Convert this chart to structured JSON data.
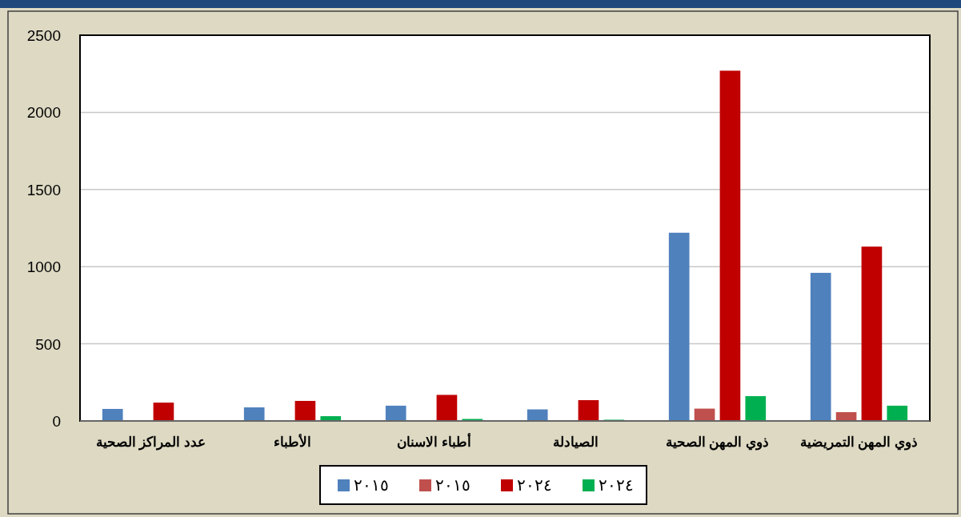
{
  "chart_data": {
    "type": "bar",
    "categories": [
      "عدد المراكز الصحية",
      "الأطباء",
      "أطباء الاسنان",
      "الصيادلة",
      "ذوي المهن الصحية",
      "ذوي المهن التمريضية"
    ],
    "series": [
      {
        "name": "٢٠١٥",
        "color": "#4f81bd",
        "values": [
          78,
          88,
          99,
          75,
          1220,
          960
        ]
      },
      {
        "name": "٢٠١٥",
        "color": "#c0504d",
        "values": [
          null,
          0,
          null,
          null,
          80,
          57
        ]
      },
      {
        "name": "٢٠٢٤",
        "color": "#c00000",
        "values": [
          119,
          130,
          169,
          135,
          2270,
          1130
        ]
      },
      {
        "name": "٢٠٢٤",
        "color": "#00b050",
        "values": [
          2,
          31,
          13,
          8,
          161,
          99
        ]
      }
    ],
    "ylim": [
      0,
      2500
    ],
    "yticks": [
      0,
      500,
      1000,
      1500,
      2000,
      2500
    ],
    "grid": "y",
    "legend": "bottom"
  }
}
